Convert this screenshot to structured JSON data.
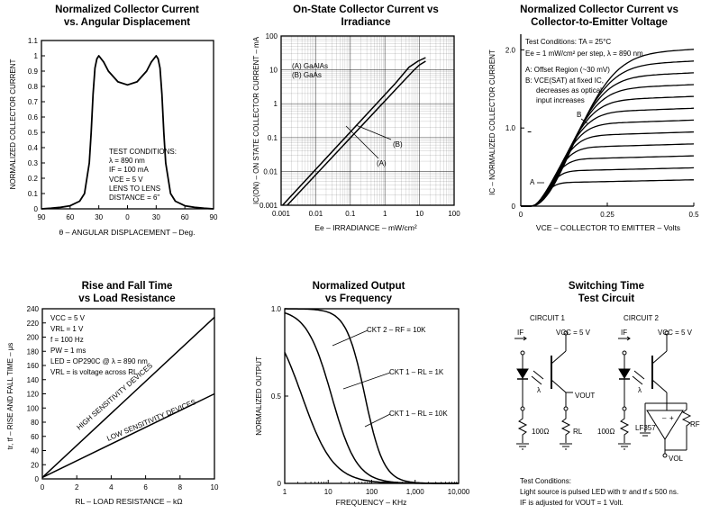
{
  "chart_data": [
    {
      "id": "angular",
      "type": "line",
      "title": [
        "Normalized Collector Current",
        "vs. Angular Displacement"
      ],
      "xlabel": "θ – ANGULAR DISPLACEMENT – Deg.",
      "ylabel": "NORMALIZED COLLECTOR CURRENT",
      "x_ticks": [
        "90",
        "60",
        "30",
        "0",
        "30",
        "60",
        "90"
      ],
      "y_ticks": [
        "0",
        "0.1",
        "0.2",
        "0.3",
        "0.4",
        "0.5",
        "0.6",
        "0.7",
        "0.8",
        "0.9",
        "1",
        "1.1"
      ],
      "xlim": [
        -90,
        90
      ],
      "ylim": [
        0,
        1.1
      ],
      "series": [
        {
          "name": "response",
          "x": [
            -90,
            -80,
            -70,
            -60,
            -50,
            -45,
            -40,
            -38,
            -36,
            -34,
            -32,
            -30,
            -25,
            -20,
            -10,
            0,
            10,
            20,
            25,
            30,
            32,
            34,
            36,
            38,
            40,
            45,
            50,
            60,
            70,
            80,
            90
          ],
          "y": [
            0,
            0.004,
            0.01,
            0.02,
            0.05,
            0.1,
            0.3,
            0.5,
            0.75,
            0.92,
            0.98,
            1.0,
            0.96,
            0.9,
            0.83,
            0.81,
            0.83,
            0.9,
            0.96,
            1.0,
            0.98,
            0.92,
            0.75,
            0.5,
            0.3,
            0.1,
            0.05,
            0.02,
            0.01,
            0.004,
            0
          ]
        }
      ],
      "annotation": [
        "TEST CONDITIONS:",
        "λ = 890 nm",
        "IF = 100 mA",
        "VCE = 5 V",
        "LENS TO LENS",
        "DISTANCE = 6\""
      ]
    },
    {
      "id": "irradiance",
      "type": "line",
      "title": [
        "On-State Collector Current vs",
        "Irradiance"
      ],
      "xlabel": "Ee – IRRADIANCE – mW/cm²",
      "ylabel": "IC(ON) – ON STATE COLLECTOR CURRENT – mA",
      "x_ticks": [
        "0.001",
        "0.01",
        "0.1",
        "1",
        "10",
        "100"
      ],
      "y_ticks": [
        "0.001",
        "0.01",
        "0.1",
        "1",
        "10",
        "100"
      ],
      "xlim": [
        0.001,
        100
      ],
      "ylim": [
        0.001,
        100
      ],
      "scale": "log-log",
      "legend": [
        "(A) GaAlAs",
        "(B) GaAs"
      ],
      "series": [
        {
          "name": "A",
          "x": [
            0.0015,
            3,
            7,
            10,
            15
          ],
          "y": [
            0.001,
            4,
            10,
            14,
            18
          ]
        },
        {
          "name": "B",
          "x": [
            0.0011,
            2,
            5,
            9,
            15
          ],
          "y": [
            0.001,
            4,
            12,
            18,
            23
          ]
        }
      ],
      "point_labels": [
        "(A)",
        "(B)"
      ]
    },
    {
      "id": "vce",
      "type": "line",
      "title": [
        "Normalized Collector Current vs",
        "Collector-to-Emitter Voltage"
      ],
      "xlabel": "VCE – COLLECTOR TO EMITTER – Volts",
      "ylabel": "IC – NORMALIZED COLLECTOR CURRENT",
      "x_ticks": [
        "0",
        "0.25",
        "0.5"
      ],
      "y_ticks": [
        "0",
        "1.0",
        "2.0"
      ],
      "xlim": [
        0,
        0.5
      ],
      "ylim": [
        0,
        2.2
      ],
      "saturation_levels": [
        0.3,
        0.45,
        0.6,
        0.75,
        0.9,
        1.05,
        1.2,
        1.35,
        1.5,
        1.65,
        1.8,
        1.95
      ],
      "notes": [
        "Test Conditions: TA = 25°C",
        "Ee = 1 mW/cm² per step, λ = 890 nm",
        "A: Offset Region (~30 mV)",
        "B: VCE(SAT) at fixed IC,",
        "decreases as optical",
        "input increases"
      ],
      "point_labels": [
        "A",
        "B"
      ]
    },
    {
      "id": "risefall",
      "type": "line",
      "title": [
        "Rise and Fall Time",
        "vs Load Resistance"
      ],
      "xlabel": "RL – LOAD RESISTANCE – kΩ",
      "ylabel": "tr, tf – RISE AND FALL TIME – μs",
      "x_ticks": [
        "0",
        "2",
        "4",
        "6",
        "8",
        "10"
      ],
      "y_ticks": [
        "0",
        "20",
        "40",
        "60",
        "80",
        "100",
        "120",
        "140",
        "160",
        "180",
        "200",
        "220",
        "240"
      ],
      "xlim": [
        0,
        10
      ],
      "ylim": [
        0,
        240
      ],
      "series": [
        {
          "name": "HIGH SENSITIVITY DEVICES",
          "x": [
            0,
            10
          ],
          "y": [
            2,
            228
          ]
        },
        {
          "name": "LOW SENSITIVITY DEVICES",
          "x": [
            0,
            10
          ],
          "y": [
            2,
            120
          ]
        }
      ],
      "notes": [
        "VCC = 5 V",
        "VRL = 1 V",
        "f = 100 Hz",
        "PW = 1 ms",
        "LED = OP290C @ λ = 890 nm",
        "VRL = is voltage across RL"
      ]
    },
    {
      "id": "frequency",
      "type": "line",
      "title": [
        "Normalized Output",
        "vs Frequency"
      ],
      "xlabel": "FREQUENCY – KHz",
      "ylabel": "NORMALIZED OUTPUT",
      "x_ticks": [
        "1",
        "10",
        "100",
        "1,000",
        "10,000"
      ],
      "y_ticks": [
        "0",
        "0.5",
        "1.0"
      ],
      "xlim": [
        1,
        10000
      ],
      "ylim": [
        0,
        1.0
      ],
      "scale": "log-x",
      "series": [
        {
          "name": "CKT 2 – RF = 10K",
          "f3db": 70,
          "steep": 2.0
        },
        {
          "name": "CKT 1 – RL = 1K",
          "f3db": 12,
          "steep": 1.5
        },
        {
          "name": "CKT 1 – RL = 10K",
          "f3db": 2.5,
          "steep": 1.2
        }
      ]
    }
  ],
  "circuit": {
    "title": [
      "Switching Time",
      "Test Circuit"
    ],
    "circuit1": "CIRCUIT 1",
    "circuit2": "CIRCUIT 2",
    "if_label": "IF",
    "vcc_label": "VCC = 5 V",
    "lambda": "λ",
    "vout": "VOUT",
    "rl": "RL",
    "r100": "100Ω",
    "lf357": "LF357",
    "rf": "RF",
    "vol": "VOL",
    "notes": [
      "Test Conditions:",
      "Light source is pulsed LED with tr and tf ≤ 500 ns.",
      "IF is adjusted for VOUT = 1 Volt."
    ]
  }
}
